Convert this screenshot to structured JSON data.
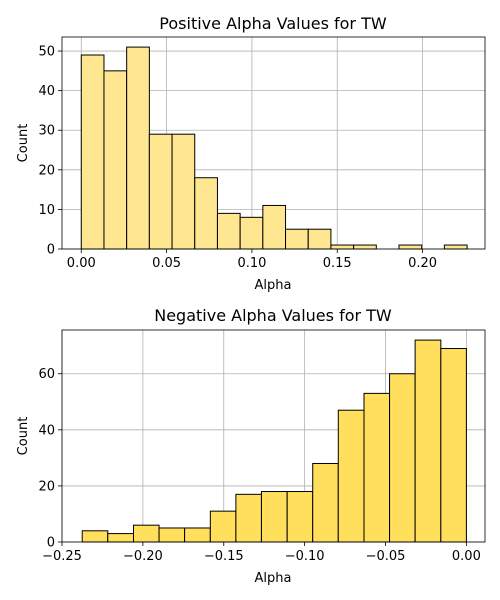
{
  "chart_data": [
    {
      "type": "bar",
      "title": "Positive Alpha Values for TW",
      "xlabel": "Alpha",
      "ylabel": "Count",
      "xlim": [
        -0.0113,
        0.2366
      ],
      "ylim": [
        0,
        53.55
      ],
      "grid": true,
      "bar_color": "#ffe792",
      "xticks": [
        0.0,
        0.05,
        0.1,
        0.15,
        0.2
      ],
      "xtick_labels": [
        "0.00",
        "0.05",
        "0.10",
        "0.15",
        "0.20"
      ],
      "yticks": [
        0,
        10,
        20,
        30,
        40,
        50
      ],
      "ytick_labels": [
        "0",
        "10",
        "20",
        "30",
        "40",
        "50"
      ],
      "bin_edges": [
        0.0,
        0.0133,
        0.0266,
        0.0399,
        0.0532,
        0.0665,
        0.0798,
        0.0931,
        0.1064,
        0.1197,
        0.133,
        0.1463,
        0.1596,
        0.1729,
        0.1862,
        0.1995,
        0.2128,
        0.2261
      ],
      "values": [
        49,
        45,
        51,
        29,
        29,
        18,
        9,
        8,
        11,
        5,
        5,
        1,
        1,
        0,
        1,
        0,
        1
      ]
    },
    {
      "type": "bar",
      "title": "Negative Alpha Values for TW",
      "xlabel": "Alpha",
      "ylabel": "Count",
      "xlim": [
        -0.25,
        0.0115
      ],
      "ylim": [
        0,
        75.6
      ],
      "grid": true,
      "bar_color": "#ffdf5c",
      "xticks": [
        -0.25,
        -0.2,
        -0.15,
        -0.1,
        -0.05,
        0.0
      ],
      "xtick_labels": [
        "−0.25",
        "−0.20",
        "−0.15",
        "−0.10",
        "−0.05",
        "0.00"
      ],
      "yticks": [
        0,
        20,
        40,
        60
      ],
      "ytick_labels": [
        "0",
        "20",
        "40",
        "60"
      ],
      "bin_edges": [
        -0.2375,
        -0.2217,
        -0.2058,
        -0.19,
        -0.1742,
        -0.1583,
        -0.1425,
        -0.1267,
        -0.1108,
        -0.095,
        -0.0792,
        -0.0633,
        -0.0475,
        -0.0317,
        -0.0158,
        0.0
      ],
      "values": [
        4,
        3,
        6,
        5,
        5,
        11,
        17,
        18,
        18,
        28,
        47,
        53,
        60,
        72,
        69
      ]
    }
  ]
}
